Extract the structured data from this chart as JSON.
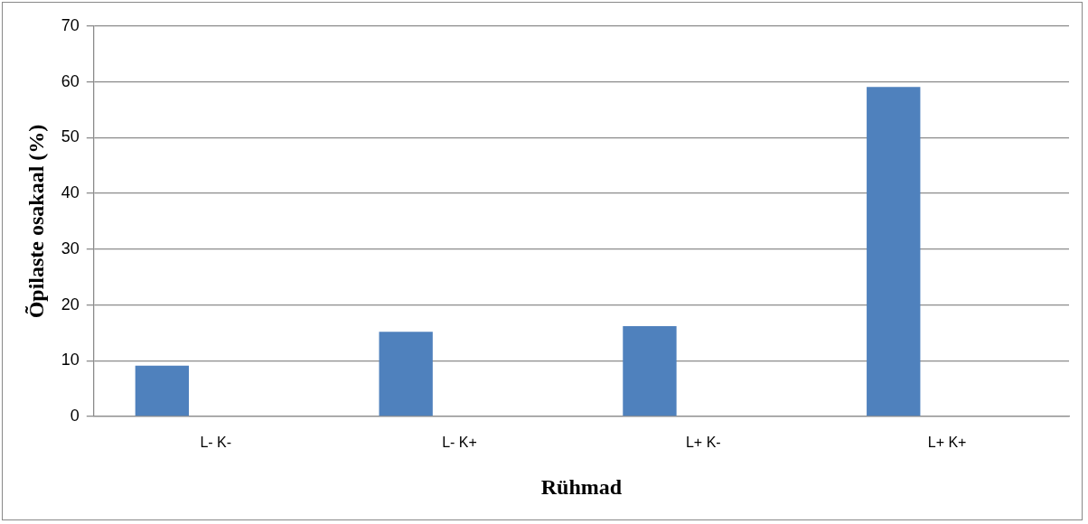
{
  "chart_data": {
    "type": "bar",
    "xlabel": "Rühmad",
    "ylabel": "Õpilaste osakaal (%)",
    "categories": [
      "L- K-",
      "L- K+",
      "L+ K-",
      "L+ K+"
    ],
    "values": [
      9.1,
      15.2,
      16.2,
      59.1
    ],
    "color": "#4f81bd",
    "ylim": [
      0,
      70
    ],
    "yticks": [
      0,
      10,
      20,
      30,
      40,
      50,
      60,
      70
    ],
    "grid": "y"
  }
}
